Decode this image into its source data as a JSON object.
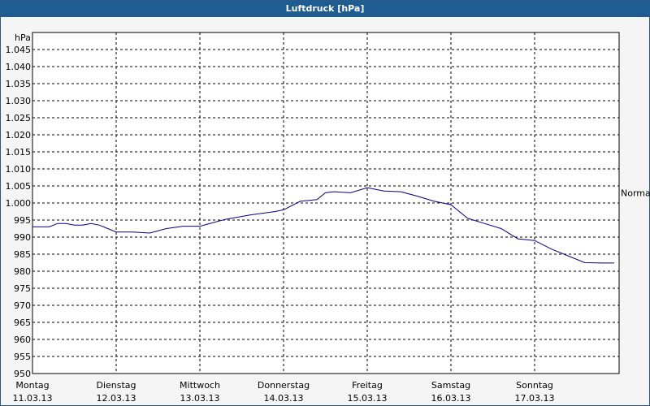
{
  "window": {
    "title": "Luftdruck [hPa]"
  },
  "chart_data": {
    "type": "line",
    "title": "Luftdruck [hPa]",
    "ylabel": "hPa",
    "ylim": [
      950,
      1050
    ],
    "yticks": [
      950,
      955,
      960,
      965,
      970,
      975,
      980,
      985,
      990,
      995,
      1000,
      1005,
      1010,
      1015,
      1020,
      1025,
      1030,
      1035,
      1040,
      1045
    ],
    "ytick_labels": [
      "950",
      "955",
      "960",
      "965",
      "970",
      "975",
      "980",
      "985",
      "990",
      "995",
      "1.000",
      "1.005",
      "1.010",
      "1.015",
      "1.020",
      "1.025",
      "1.030",
      "1.035",
      "1.040",
      "1.045"
    ],
    "days": [
      {
        "day": "Montag",
        "date": "11.03.13"
      },
      {
        "day": "Dienstag",
        "date": "12.03.13"
      },
      {
        "day": "Mittwoch",
        "date": "13.03.13"
      },
      {
        "day": "Donnerstag",
        "date": "14.03.13"
      },
      {
        "day": "Freitag",
        "date": "15.03.13"
      },
      {
        "day": "Samstag",
        "date": "16.03.13"
      },
      {
        "day": "Sonntag",
        "date": "17.03.13"
      }
    ],
    "reference_line": {
      "label": "Normal",
      "value": 1003
    },
    "grid": true,
    "series": [
      {
        "color": "#00008b",
        "x": [
          0,
          0.2,
          0.3,
          0.4,
          0.5,
          0.6,
          0.7,
          0.8,
          1.0,
          1.2,
          1.4,
          1.6,
          1.8,
          2.0,
          2.3,
          2.6,
          2.9,
          3.0,
          3.2,
          3.4,
          3.5,
          3.6,
          3.8,
          4.0,
          4.2,
          4.4,
          4.6,
          4.8,
          5.0,
          5.2,
          5.4,
          5.6,
          5.8,
          6.0,
          6.2,
          6.4,
          6.6,
          6.8,
          6.95
        ],
        "values": [
          993,
          993,
          994,
          994,
          993.5,
          993.5,
          994,
          993.5,
          991.5,
          991.5,
          991.2,
          992.5,
          993.2,
          993.2,
          995.2,
          996.5,
          997.5,
          998,
          1000.5,
          1001,
          1003,
          1003.3,
          1003,
          1004.5,
          1003.5,
          1003.3,
          1002,
          1000.5,
          999.5,
          995.5,
          994,
          992.5,
          989.5,
          989,
          986.5,
          984.5,
          982.5,
          982.4,
          982.4
        ]
      }
    ]
  }
}
